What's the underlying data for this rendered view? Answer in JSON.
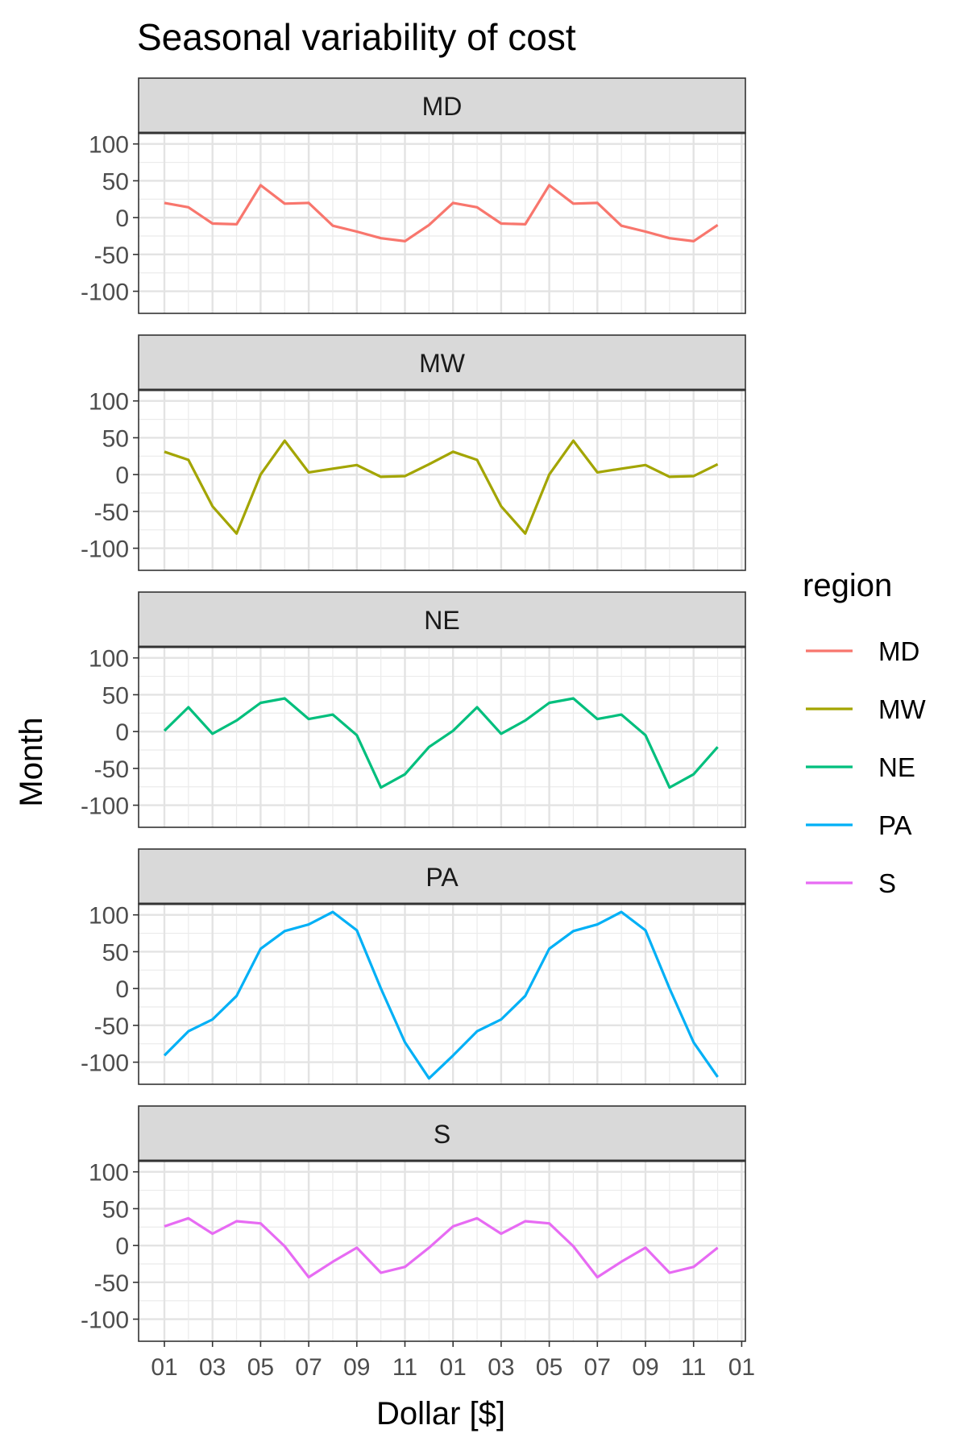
{
  "chart_data": {
    "type": "line",
    "title": "Seasonal variability of cost",
    "xlabel": "Dollar [$]",
    "ylabel": "Month",
    "x_tick_labels": [
      "01",
      "03",
      "05",
      "07",
      "09",
      "11",
      "01",
      "03",
      "05",
      "07",
      "09",
      "11",
      "01"
    ],
    "y_ticks": [
      100,
      50,
      0,
      -50,
      -100
    ],
    "ylim": [
      -130,
      115
    ],
    "legend": {
      "title": "region",
      "position": "right"
    },
    "grid": true,
    "x": [
      "01",
      "02",
      "03",
      "04",
      "05",
      "06",
      "07",
      "08",
      "09",
      "10",
      "11",
      "12",
      "01",
      "02",
      "03",
      "04",
      "05",
      "06",
      "07",
      "08",
      "09",
      "10",
      "11",
      "12"
    ],
    "series": [
      {
        "name": "MD",
        "color": "#F8766D",
        "values": [
          20,
          14,
          -8,
          -9,
          44,
          19,
          20,
          -11,
          -19,
          -28,
          -32,
          -10,
          20,
          14,
          -8,
          -9,
          44,
          19,
          20,
          -11,
          -19,
          -28,
          -32,
          -10
        ]
      },
      {
        "name": "MW",
        "color": "#A3A500",
        "values": [
          31,
          20,
          -43,
          -80,
          0,
          46,
          3,
          8,
          13,
          -3,
          -2,
          14,
          31,
          20,
          -43,
          -80,
          0,
          46,
          3,
          8,
          13,
          -3,
          -2,
          14
        ]
      },
      {
        "name": "NE",
        "color": "#00BF7D",
        "values": [
          1,
          33,
          -3,
          15,
          39,
          45,
          17,
          23,
          -5,
          -76,
          -58,
          -21,
          1,
          33,
          -3,
          15,
          39,
          45,
          17,
          23,
          -5,
          -76,
          -58,
          -21
        ]
      },
      {
        "name": "PA",
        "color": "#00B0F6",
        "values": [
          -91,
          -58,
          -42,
          -10,
          54,
          78,
          87,
          104,
          79,
          0,
          -73,
          -122,
          -91,
          -58,
          -42,
          -10,
          54,
          78,
          87,
          104,
          79,
          0,
          -73,
          -120
        ]
      },
      {
        "name": "S",
        "color": "#E76BF3",
        "values": [
          26,
          37,
          16,
          33,
          30,
          -1,
          -43,
          -22,
          -3,
          -37,
          -29,
          -3,
          26,
          37,
          16,
          33,
          30,
          -1,
          -43,
          -22,
          -3,
          -37,
          -29,
          -3
        ]
      }
    ]
  }
}
